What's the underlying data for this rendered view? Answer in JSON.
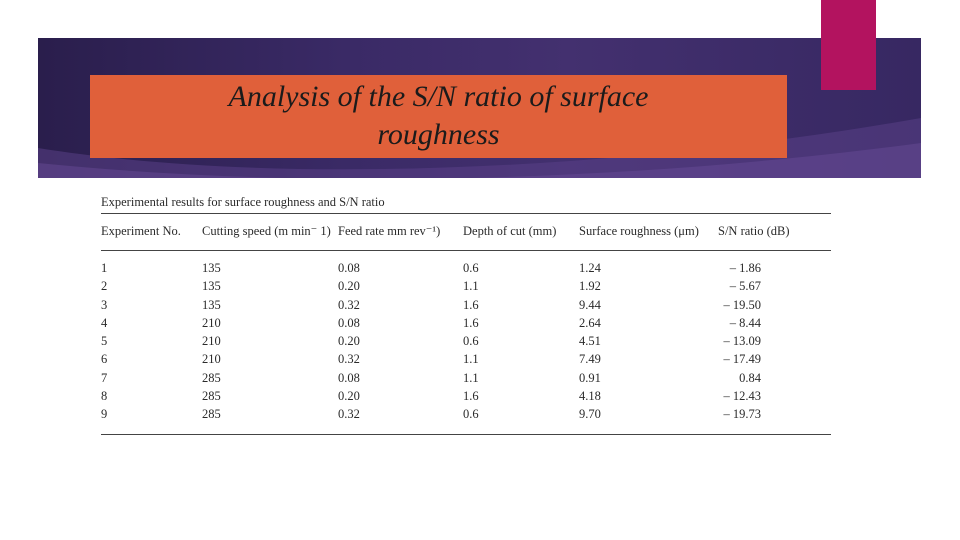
{
  "slide": {
    "title_line1": "Analysis of the S/N ratio of surface",
    "title_line2": "roughness",
    "colors": {
      "banner": "#3a2a66",
      "accent": "#b3135f",
      "title_box": "#e0603a"
    }
  },
  "table": {
    "caption": "Experimental results for surface roughness and S/N ratio",
    "headers": [
      "Experiment No.",
      "Cutting speed (m min⁻ 1)",
      "Feed rate mm rev⁻¹)",
      "Depth of cut (mm)",
      "Surface roughness (μm)",
      "S/N ratio (dB)"
    ],
    "rows": [
      [
        "1",
        "135",
        "0.08",
        "0.6",
        "1.24",
        "– 1.86"
      ],
      [
        "2",
        "135",
        "0.20",
        "1.1",
        "1.92",
        "– 5.67"
      ],
      [
        "3",
        "135",
        "0.32",
        "1.6",
        "9.44",
        "– 19.50"
      ],
      [
        "4",
        "210",
        "0.08",
        "1.6",
        "2.64",
        "– 8.44"
      ],
      [
        "5",
        "210",
        "0.20",
        "0.6",
        "4.51",
        "– 13.09"
      ],
      [
        "6",
        "210",
        "0.32",
        "1.1",
        "7.49",
        "– 17.49"
      ],
      [
        "7",
        "285",
        "0.08",
        "1.1",
        "0.91",
        "0.84"
      ],
      [
        "8",
        "285",
        "0.20",
        "1.6",
        "4.18",
        "– 12.43"
      ],
      [
        "9",
        "285",
        "0.32",
        "0.6",
        "9.70",
        "– 19.73"
      ]
    ]
  }
}
